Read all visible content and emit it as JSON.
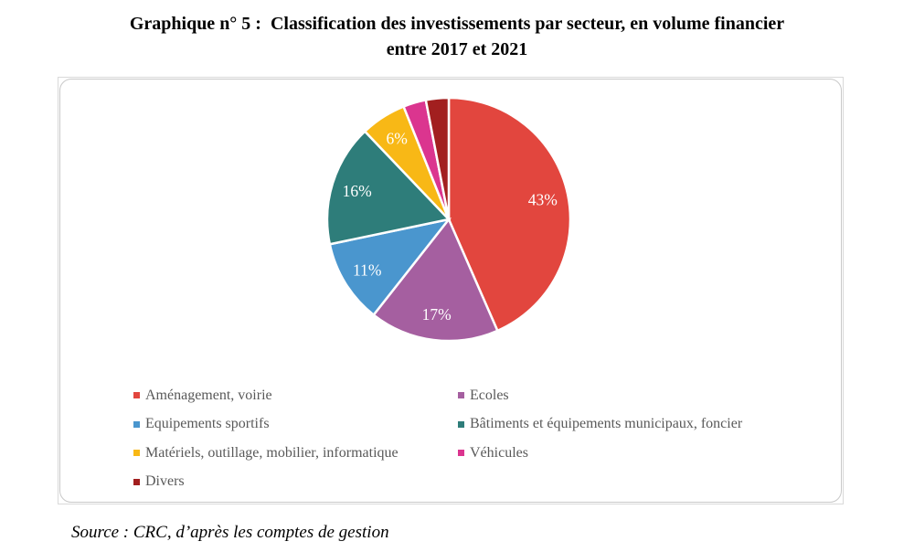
{
  "title": {
    "line1": "Graphique n° 5 :  Classification des investissements par secteur, en volume financier",
    "line2": "entre 2017 et 2021"
  },
  "source_note": "Source : CRC, d’après les comptes de gestion",
  "chart_data": {
    "type": "pie",
    "title": "Classification des investissements par secteur, en volume financier entre 2017 et 2021",
    "unit": "percent",
    "start_angle_deg": 0,
    "direction": "clockwise",
    "separator_color": "#FFFFFF",
    "data_label_color": "#FFFFFF",
    "legend_text_color": "#595959",
    "legend_position": "bottom, two columns",
    "slices": [
      {
        "name": "Aménagement, voirie",
        "value": 43,
        "display_label": "43%",
        "color": "#E2463E"
      },
      {
        "name": "Ecoles",
        "value": 17,
        "display_label": "17%",
        "color": "#A55FA0"
      },
      {
        "name": "Equipements sportifs",
        "value": 11,
        "display_label": "11%",
        "color": "#4A96CE"
      },
      {
        "name": "Bâtiments et équipements municipaux, foncier",
        "value": 16,
        "display_label": "16%",
        "color": "#2E7D7A"
      },
      {
        "name": "Matériels, outillage, mobilier, informatique",
        "value": 6,
        "display_label": "6%",
        "color": "#F8B816"
      },
      {
        "name": "Véhicules",
        "value": 3,
        "display_label": "",
        "color": "#DB358F"
      },
      {
        "name": "Divers",
        "value": 3,
        "display_label": "",
        "color": "#A21F1F"
      }
    ]
  }
}
